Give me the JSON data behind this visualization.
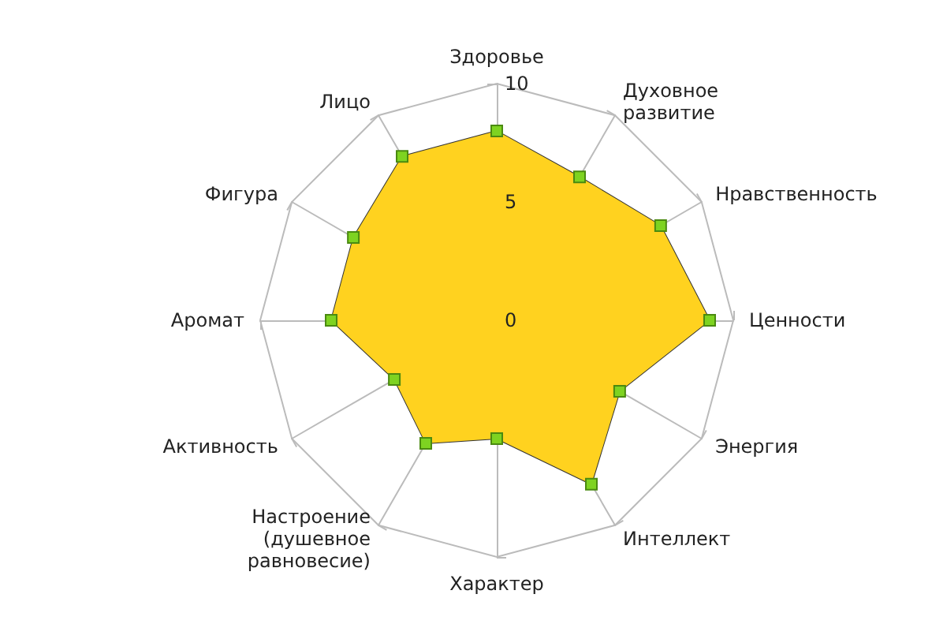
{
  "chart_data": {
    "type": "radar",
    "categories": [
      "Здоровье",
      "Духовное развитие",
      "Нравственность",
      "Ценности",
      "Энергия",
      "Интеллект",
      "Характер",
      "Настроение (душевное равновесие)",
      "Активность",
      "Аромат",
      "Фигура",
      "Лицо"
    ],
    "series": [
      {
        "color": "#ffd21f",
        "values": [
          8,
          7,
          8,
          9,
          6,
          8,
          5,
          6,
          5,
          7,
          7,
          8
        ]
      }
    ],
    "ylim": [
      0,
      10
    ],
    "yticks": [
      0,
      5,
      10
    ],
    "grid": true,
    "marker": "square"
  }
}
